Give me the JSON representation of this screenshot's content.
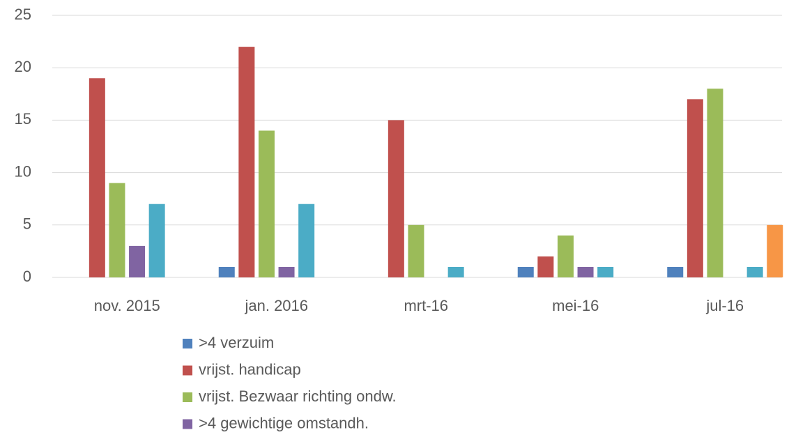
{
  "chart_data": {
    "type": "bar",
    "categories": [
      "nov. 2015",
      "jan. 2016",
      "mrt-16",
      "mei-16",
      "jul-16"
    ],
    "series": [
      {
        "name": ">4 verzuim",
        "color": "#4f81bd",
        "values": [
          0,
          1,
          0,
          1,
          1
        ]
      },
      {
        "name": "vrijst. handicap",
        "color": "#c0504d",
        "values": [
          19,
          22,
          15,
          2,
          17
        ]
      },
      {
        "name": "vrijst. Bezwaar richting ondw.",
        "color": "#9bbb59",
        "values": [
          9,
          14,
          5,
          4,
          18
        ]
      },
      {
        "name": ">4 gewichtige omstandh.",
        "color": "#8064a2",
        "values": [
          3,
          1,
          0,
          1,
          0
        ]
      },
      {
        "color": "#4bacc6",
        "values": [
          7,
          7,
          1,
          1,
          1
        ]
      },
      {
        "color": "#f79646",
        "values": [
          0,
          0,
          0,
          0,
          5
        ]
      }
    ],
    "ylim": [
      0,
      25
    ],
    "yticks": [
      0,
      5,
      10,
      15,
      20,
      25
    ],
    "grid": true,
    "legend": "bottom"
  }
}
